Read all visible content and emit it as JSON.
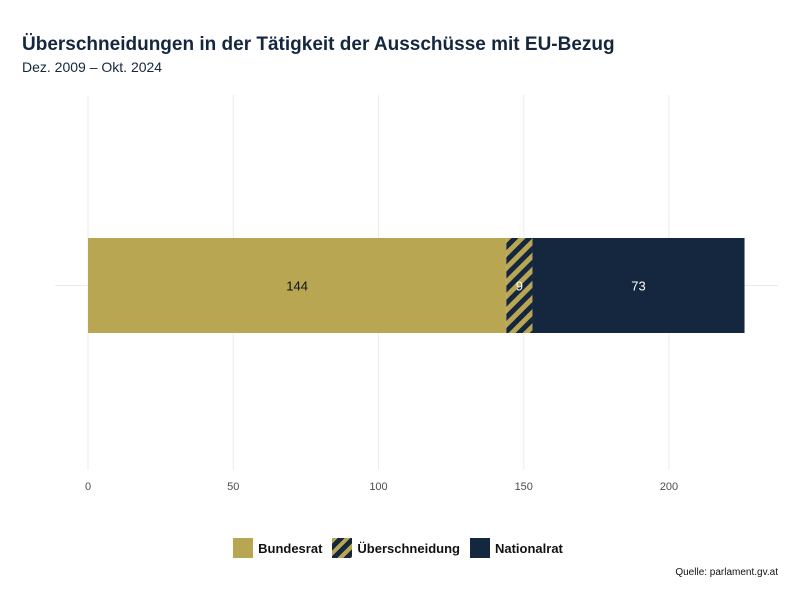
{
  "title": "Überschneidungen in der Tätigkeit der Ausschüsse mit EU-Bezug",
  "subtitle": "Dez. 2009 – Okt. 2024",
  "source": "Quelle: parlament.gv.at",
  "chart_data": {
    "type": "bar",
    "orientation": "horizontal",
    "stacked": true,
    "categories": [
      ""
    ],
    "series": [
      {
        "name": "Bundesrat",
        "values": [
          144
        ],
        "color": "#b9a653",
        "pattern": "solid"
      },
      {
        "name": "Überschneidung",
        "values": [
          9
        ],
        "color": "#14273f",
        "pattern": "stripes"
      },
      {
        "name": "Nationalrat",
        "values": [
          73
        ],
        "color": "#14273f",
        "pattern": "solid"
      }
    ],
    "data_labels": [
      "144",
      "9",
      "73"
    ],
    "xlim": [
      0,
      226
    ],
    "xticks": [
      0,
      50,
      100,
      150,
      200
    ],
    "xlabel": "",
    "ylabel": "",
    "grid": true,
    "legend_position": "bottom"
  }
}
